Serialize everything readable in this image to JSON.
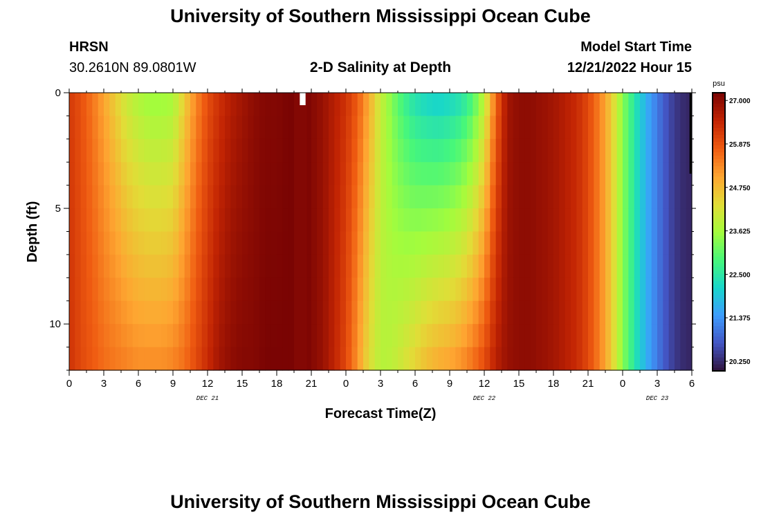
{
  "header": {
    "title": "University of Southern Mississippi Ocean Cube",
    "station": "HRSN",
    "coords": "30.2610N  89.0801W",
    "chart_title": "2-D Salinity at Depth",
    "model_label": "Model Start Time",
    "model_time": "12/21/2022 Hour 15"
  },
  "footer": {
    "title": "University of Southern Mississippi Ocean Cube"
  },
  "chart_data": {
    "type": "heatmap",
    "title": "2-D Salinity at Depth",
    "xlabel": "Forecast Time(Z)",
    "ylabel": "Depth (ft)",
    "x_range_hours": [
      0,
      54
    ],
    "x_tick_labels": [
      "0",
      "3",
      "6",
      "9",
      "12",
      "15",
      "18",
      "21",
      "0",
      "3",
      "6",
      "9",
      "12",
      "15",
      "18",
      "21",
      "0",
      "3",
      "6"
    ],
    "day_labels": [
      {
        "label": "DEC 21",
        "hour": 12
      },
      {
        "label": "DEC 22",
        "hour": 36
      },
      {
        "label": "DEC 23",
        "hour": 51
      }
    ],
    "y_ticks": [
      0,
      5,
      10
    ],
    "ylim": [
      0,
      12
    ],
    "colorbar": {
      "unit": "psu",
      "min": 20.0,
      "max": 27.2,
      "tick_labels": [
        "27.000",
        "25.875",
        "24.750",
        "23.625",
        "22.500",
        "21.375",
        "20.250"
      ]
    },
    "depth_levels_ft": [
      0,
      1,
      2,
      3,
      4,
      5,
      6,
      7,
      8,
      9,
      10,
      11,
      12
    ],
    "surface_salinity": [
      [
        0,
        26.2
      ],
      [
        1,
        25.9
      ],
      [
        2,
        25.5
      ],
      [
        3,
        25.0
      ],
      [
        4,
        24.5
      ],
      [
        5,
        24.0
      ],
      [
        6,
        23.7
      ],
      [
        7,
        23.5
      ],
      [
        8,
        23.5
      ],
      [
        9,
        23.6
      ],
      [
        10,
        24.5
      ],
      [
        11,
        25.3
      ],
      [
        12,
        25.9
      ],
      [
        13,
        26.3
      ],
      [
        14,
        26.6
      ],
      [
        15,
        26.8
      ],
      [
        16,
        27.0
      ],
      [
        17,
        27.1
      ],
      [
        18,
        27.1
      ],
      [
        19,
        27.2
      ],
      [
        20,
        27.3
      ],
      [
        21,
        27.1
      ],
      [
        22,
        26.9
      ],
      [
        23,
        26.6
      ],
      [
        24,
        26.3
      ],
      [
        25,
        25.8
      ],
      [
        26,
        25.0
      ],
      [
        27,
        24.0
      ],
      [
        28,
        23.3
      ],
      [
        29,
        22.7
      ],
      [
        30,
        22.3
      ],
      [
        31,
        22.1
      ],
      [
        32,
        22.0
      ],
      [
        33,
        22.1
      ],
      [
        34,
        22.3
      ],
      [
        35,
        22.8
      ],
      [
        36,
        23.8
      ],
      [
        37,
        25.6
      ],
      [
        38,
        26.8
      ],
      [
        39,
        27.0
      ],
      [
        40,
        27.0
      ],
      [
        41,
        26.9
      ],
      [
        42,
        26.8
      ],
      [
        43,
        26.6
      ],
      [
        44,
        26.4
      ],
      [
        45,
        26.0
      ],
      [
        46,
        25.4
      ],
      [
        47,
        24.6
      ],
      [
        48,
        23.4
      ],
      [
        49,
        22.5
      ],
      [
        50,
        21.7
      ],
      [
        51,
        21.1
      ],
      [
        52,
        20.6
      ],
      [
        53,
        20.3
      ],
      [
        54,
        20.2
      ]
    ],
    "bottom_salinity": [
      [
        0,
        26.3
      ],
      [
        1,
        26.0
      ],
      [
        2,
        25.8
      ],
      [
        3,
        25.6
      ],
      [
        4,
        25.5
      ],
      [
        5,
        25.4
      ],
      [
        6,
        25.3
      ],
      [
        7,
        25.3
      ],
      [
        8,
        25.3
      ],
      [
        9,
        25.4
      ],
      [
        10,
        25.6
      ],
      [
        11,
        26.0
      ],
      [
        12,
        26.4
      ],
      [
        13,
        26.8
      ],
      [
        14,
        27.0
      ],
      [
        15,
        27.1
      ],
      [
        16,
        27.1
      ],
      [
        17,
        27.2
      ],
      [
        18,
        27.2
      ],
      [
        19,
        27.2
      ],
      [
        20,
        27.3
      ],
      [
        21,
        27.1
      ],
      [
        22,
        26.9
      ],
      [
        23,
        26.5
      ],
      [
        24,
        26.0
      ],
      [
        25,
        25.2
      ],
      [
        26,
        24.3
      ],
      [
        27,
        23.8
      ],
      [
        28,
        23.9
      ],
      [
        29,
        24.2
      ],
      [
        30,
        24.5
      ],
      [
        31,
        24.8
      ],
      [
        32,
        25.0
      ],
      [
        33,
        25.1
      ],
      [
        34,
        25.3
      ],
      [
        35,
        25.6
      ],
      [
        36,
        26.0
      ],
      [
        37,
        26.6
      ],
      [
        38,
        26.9
      ],
      [
        39,
        27.0
      ],
      [
        40,
        27.0
      ],
      [
        41,
        26.9
      ],
      [
        42,
        26.8
      ],
      [
        43,
        26.6
      ],
      [
        44,
        26.4
      ],
      [
        45,
        26.0
      ],
      [
        46,
        25.4
      ],
      [
        47,
        24.6
      ],
      [
        48,
        23.4
      ],
      [
        49,
        22.5
      ],
      [
        50,
        21.7
      ],
      [
        51,
        21.1
      ],
      [
        52,
        20.6
      ],
      [
        53,
        20.3
      ],
      [
        54,
        20.2
      ]
    ]
  }
}
